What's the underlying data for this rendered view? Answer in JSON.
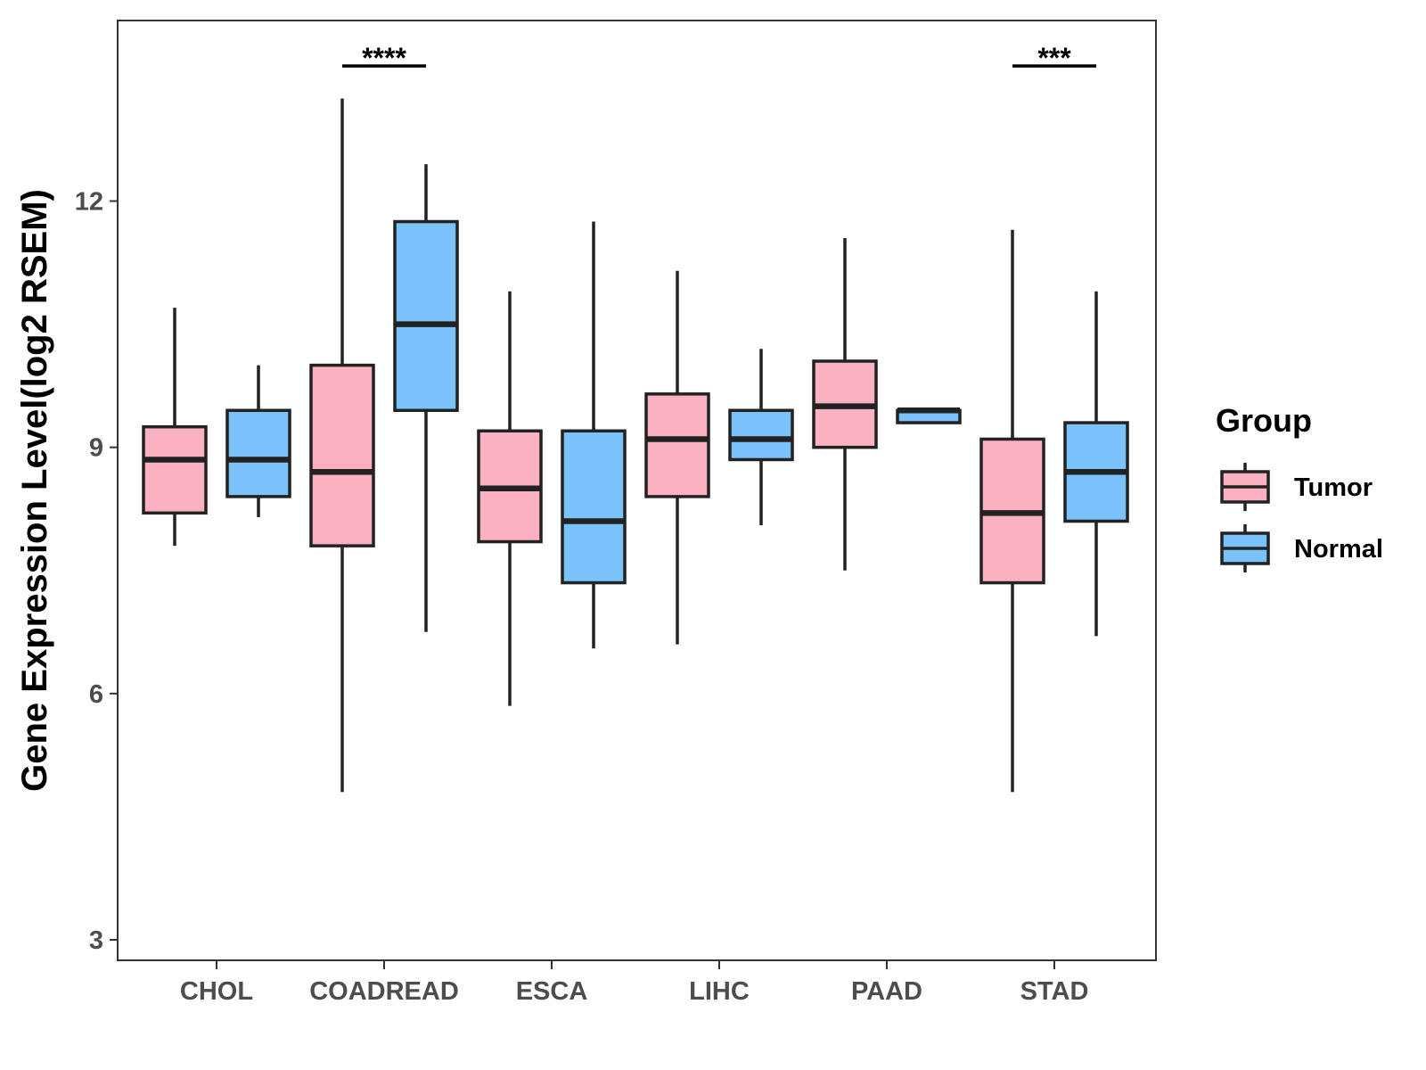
{
  "chart_data": {
    "type": "boxplot",
    "title": "",
    "xlabel": "",
    "ylabel": "Gene Expression Level(log2 RSEM)",
    "ylim": [
      2.75,
      14.2
    ],
    "yticks": [
      3,
      6,
      9,
      12
    ],
    "categories": [
      "CHOL",
      "COADREAD",
      "ESCA",
      "LIHC",
      "PAAD",
      "STAD"
    ],
    "legend": {
      "title": "Group",
      "position": "right"
    },
    "series": [
      {
        "name": "Tumor",
        "color": "#FBB1C2",
        "boxes": [
          {
            "min": 7.8,
            "q1": 8.2,
            "median": 8.85,
            "q3": 9.25,
            "max": 10.7
          },
          {
            "min": 4.8,
            "q1": 7.8,
            "median": 8.7,
            "q3": 10.0,
            "max": 13.25
          },
          {
            "min": 5.85,
            "q1": 7.85,
            "median": 8.5,
            "q3": 9.2,
            "max": 10.9
          },
          {
            "min": 6.6,
            "q1": 8.4,
            "median": 9.1,
            "q3": 9.65,
            "max": 11.15
          },
          {
            "min": 7.5,
            "q1": 9.0,
            "median": 9.5,
            "q3": 10.05,
            "max": 11.55
          },
          {
            "min": 4.8,
            "q1": 7.35,
            "median": 8.2,
            "q3": 9.1,
            "max": 11.65
          }
        ]
      },
      {
        "name": "Normal",
        "color": "#79C3FA",
        "boxes": [
          {
            "min": 8.15,
            "q1": 8.4,
            "median": 8.85,
            "q3": 9.45,
            "max": 10.0
          },
          {
            "min": 6.75,
            "q1": 9.45,
            "median": 10.5,
            "q3": 11.75,
            "max": 12.45
          },
          {
            "min": 6.55,
            "q1": 7.35,
            "median": 8.1,
            "q3": 9.2,
            "max": 11.75
          },
          {
            "min": 8.05,
            "q1": 8.85,
            "median": 9.1,
            "q3": 9.45,
            "max": 10.2
          },
          {
            "min": 9.3,
            "q1": 9.3,
            "median": 9.45,
            "q3": 9.45,
            "max": 9.45
          },
          {
            "min": 6.7,
            "q1": 8.1,
            "median": 8.7,
            "q3": 9.3,
            "max": 10.9
          }
        ]
      }
    ],
    "annotations": [
      {
        "category": "COADREAD",
        "label": "****"
      },
      {
        "category": "STAD",
        "label": "***"
      }
    ]
  }
}
